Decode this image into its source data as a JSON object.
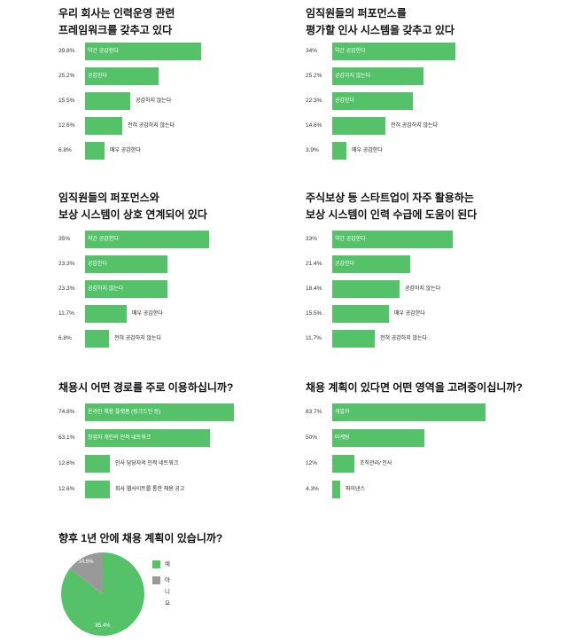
{
  "colors": {
    "bar": "#55c26a",
    "pie_yes": "#55c26a",
    "pie_no": "#999999"
  },
  "chart_data": [
    {
      "type": "bar",
      "title": [
        "우리 회사는 인력운영 관련",
        "프레임워크를 갖추고 있다"
      ],
      "categories": [
        "약간 공감한다",
        "공감한다",
        "공감하지 않는다",
        "전혀 공감하지 않는다",
        "매우 공감한다"
      ],
      "values": [
        39.8,
        25.2,
        15.5,
        12.6,
        6.8
      ],
      "value_labels": [
        "39.8%",
        "25.2%",
        "15.5%",
        "12.6%",
        "6.8%"
      ]
    },
    {
      "type": "bar",
      "title": [
        "임직원들의 퍼포먼스를",
        "평가할 인사 시스템을 갖추고 있다"
      ],
      "categories": [
        "약간 공감한다",
        "공감하지 않는다",
        "공감한다",
        "전혀 공감하지 않는다",
        "매우 공감한다"
      ],
      "values": [
        34,
        25.2,
        22.3,
        14.6,
        3.9
      ],
      "value_labels": [
        "34%",
        "25.2%",
        "22.3%",
        "14.6%",
        "3.9%"
      ]
    },
    {
      "type": "bar",
      "title": [
        "임직원들의 퍼포먼스와",
        "보상 시스템이 상호 연계되어 있다"
      ],
      "categories": [
        "약간 공감한다",
        "공감한다",
        "공감하지 않는다",
        "매우 공감한다",
        "전혀 공감하지 않는다"
      ],
      "values": [
        35,
        23.3,
        23.3,
        11.7,
        6.8
      ],
      "value_labels": [
        "35%",
        "23.3%",
        "23.3%",
        "11.7%",
        "6.8%"
      ]
    },
    {
      "type": "bar",
      "title": [
        "주식보상 등 스타트업이 자주 활용하는",
        "보상 시스템이 인력 수급에 도움이 된다"
      ],
      "categories": [
        "약간 공감한다",
        "공감한다",
        "공감하지 않는다",
        "매우 공감한다",
        "전혀 공감하지 않는다"
      ],
      "values": [
        33,
        21.4,
        18.4,
        15.5,
        11.7
      ],
      "value_labels": [
        "33%",
        "21.4%",
        "18.4%",
        "15.5%",
        "11.7%"
      ]
    },
    {
      "type": "bar",
      "title": [
        "채용시 어떤 경로를 주로 이용하십니까?"
      ],
      "categories": [
        "온라인 채용 플랫폼 (링크드인 등)",
        "창업자 개인의 인적 네트워크",
        "인사 담당자의 인적 네트워크",
        "회사 웹사이트를 통한 채용 공고"
      ],
      "values": [
        74.8,
        63.1,
        12.6,
        12.6
      ],
      "value_labels": [
        "74.8%",
        "63.1%",
        "12.6%",
        "12.6%"
      ]
    },
    {
      "type": "bar",
      "title": [
        "채용 계획이 있다면 어떤 영역을 고려중이십니까?"
      ],
      "categories": [
        "개발자",
        "마케팅",
        "조직관리/ 인사",
        "파이낸스"
      ],
      "values": [
        83.7,
        50,
        12,
        4.3
      ],
      "value_labels": [
        "83.7%",
        "50%",
        "12%",
        "4.3%"
      ]
    },
    {
      "type": "pie",
      "title": [
        "향후 1년 안에 채용 계획이 있습니까?"
      ],
      "categories": [
        "예",
        "아니요"
      ],
      "values": [
        85.4,
        14.6
      ],
      "value_labels": [
        "85.4%",
        "14.6%"
      ],
      "legend": "right"
    }
  ]
}
